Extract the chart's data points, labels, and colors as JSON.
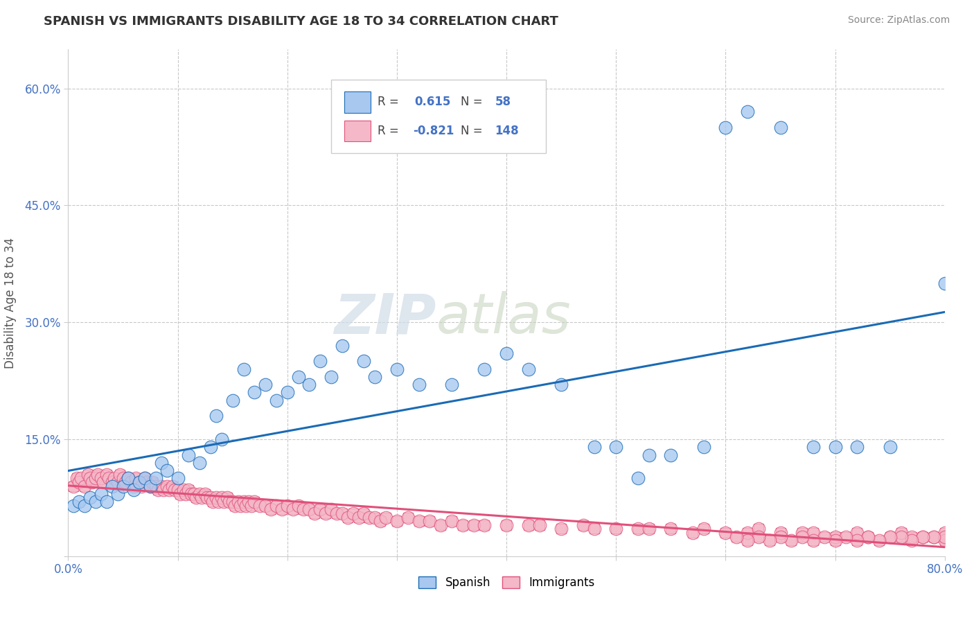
{
  "title": "SPANISH VS IMMIGRANTS DISABILITY AGE 18 TO 34 CORRELATION CHART",
  "source": "Source: ZipAtlas.com",
  "ylabel": "Disability Age 18 to 34",
  "xlim": [
    0.0,
    0.8
  ],
  "ylim": [
    0.0,
    0.65
  ],
  "r_spanish": 0.615,
  "n_spanish": 58,
  "r_immigrants": -0.821,
  "n_immigrants": 148,
  "spanish_color": "#a8c8f0",
  "immigrants_color": "#f4b8c8",
  "line_spanish_color": "#1a6bb5",
  "line_immigrants_color": "#e0507a",
  "watermark_zip": "ZIP",
  "watermark_atlas": "atlas",
  "background_color": "#ffffff",
  "grid_color": "#c8c8c8",
  "spanish_x": [
    0.005,
    0.01,
    0.015,
    0.02,
    0.025,
    0.03,
    0.035,
    0.04,
    0.045,
    0.05,
    0.055,
    0.06,
    0.065,
    0.07,
    0.075,
    0.08,
    0.085,
    0.09,
    0.1,
    0.11,
    0.12,
    0.13,
    0.135,
    0.14,
    0.15,
    0.16,
    0.17,
    0.18,
    0.19,
    0.2,
    0.21,
    0.22,
    0.23,
    0.24,
    0.25,
    0.27,
    0.28,
    0.3,
    0.32,
    0.35,
    0.38,
    0.4,
    0.42,
    0.45,
    0.48,
    0.5,
    0.52,
    0.53,
    0.55,
    0.58,
    0.6,
    0.62,
    0.65,
    0.68,
    0.7,
    0.72,
    0.75,
    0.8
  ],
  "spanish_y": [
    0.065,
    0.07,
    0.065,
    0.075,
    0.07,
    0.08,
    0.07,
    0.09,
    0.08,
    0.09,
    0.1,
    0.085,
    0.095,
    0.1,
    0.09,
    0.1,
    0.12,
    0.11,
    0.1,
    0.13,
    0.12,
    0.14,
    0.18,
    0.15,
    0.2,
    0.24,
    0.21,
    0.22,
    0.2,
    0.21,
    0.23,
    0.22,
    0.25,
    0.23,
    0.27,
    0.25,
    0.23,
    0.24,
    0.22,
    0.22,
    0.24,
    0.26,
    0.24,
    0.22,
    0.14,
    0.14,
    0.1,
    0.13,
    0.13,
    0.14,
    0.55,
    0.57,
    0.55,
    0.14,
    0.14,
    0.14,
    0.14,
    0.35
  ],
  "immigrants_x": [
    0.005,
    0.008,
    0.01,
    0.012,
    0.015,
    0.018,
    0.02,
    0.022,
    0.025,
    0.027,
    0.03,
    0.032,
    0.035,
    0.037,
    0.04,
    0.042,
    0.045,
    0.047,
    0.05,
    0.052,
    0.055,
    0.057,
    0.06,
    0.062,
    0.065,
    0.067,
    0.07,
    0.072,
    0.075,
    0.077,
    0.08,
    0.082,
    0.085,
    0.087,
    0.09,
    0.092,
    0.095,
    0.097,
    0.1,
    0.102,
    0.105,
    0.107,
    0.11,
    0.112,
    0.115,
    0.117,
    0.12,
    0.122,
    0.125,
    0.127,
    0.13,
    0.132,
    0.135,
    0.137,
    0.14,
    0.142,
    0.145,
    0.147,
    0.15,
    0.152,
    0.155,
    0.157,
    0.16,
    0.162,
    0.165,
    0.167,
    0.17,
    0.175,
    0.18,
    0.185,
    0.19,
    0.195,
    0.2,
    0.205,
    0.21,
    0.215,
    0.22,
    0.225,
    0.23,
    0.235,
    0.24,
    0.245,
    0.25,
    0.255,
    0.26,
    0.265,
    0.27,
    0.275,
    0.28,
    0.285,
    0.29,
    0.3,
    0.31,
    0.32,
    0.33,
    0.34,
    0.35,
    0.36,
    0.37,
    0.38,
    0.4,
    0.42,
    0.43,
    0.45,
    0.47,
    0.48,
    0.5,
    0.52,
    0.53,
    0.55,
    0.57,
    0.58,
    0.6,
    0.62,
    0.63,
    0.65,
    0.67,
    0.68,
    0.7,
    0.72,
    0.73,
    0.75,
    0.76,
    0.77,
    0.78,
    0.79,
    0.8,
    0.8,
    0.8,
    0.79,
    0.78,
    0.77,
    0.76,
    0.75,
    0.74,
    0.73,
    0.72,
    0.71,
    0.7,
    0.69,
    0.68,
    0.67,
    0.66,
    0.65,
    0.64,
    0.63,
    0.62,
    0.61
  ],
  "immigrants_y": [
    0.09,
    0.1,
    0.095,
    0.1,
    0.09,
    0.105,
    0.1,
    0.095,
    0.1,
    0.105,
    0.1,
    0.095,
    0.105,
    0.1,
    0.095,
    0.1,
    0.095,
    0.105,
    0.1,
    0.095,
    0.1,
    0.095,
    0.09,
    0.1,
    0.095,
    0.09,
    0.1,
    0.095,
    0.09,
    0.095,
    0.09,
    0.085,
    0.09,
    0.085,
    0.09,
    0.085,
    0.09,
    0.085,
    0.085,
    0.08,
    0.085,
    0.08,
    0.085,
    0.08,
    0.08,
    0.075,
    0.08,
    0.075,
    0.08,
    0.075,
    0.075,
    0.07,
    0.075,
    0.07,
    0.075,
    0.07,
    0.075,
    0.07,
    0.07,
    0.065,
    0.07,
    0.065,
    0.07,
    0.065,
    0.07,
    0.065,
    0.07,
    0.065,
    0.065,
    0.06,
    0.065,
    0.06,
    0.065,
    0.06,
    0.065,
    0.06,
    0.06,
    0.055,
    0.06,
    0.055,
    0.06,
    0.055,
    0.055,
    0.05,
    0.055,
    0.05,
    0.055,
    0.05,
    0.05,
    0.045,
    0.05,
    0.045,
    0.05,
    0.045,
    0.045,
    0.04,
    0.045,
    0.04,
    0.04,
    0.04,
    0.04,
    0.04,
    0.04,
    0.035,
    0.04,
    0.035,
    0.035,
    0.035,
    0.035,
    0.035,
    0.03,
    0.035,
    0.03,
    0.03,
    0.035,
    0.03,
    0.03,
    0.03,
    0.025,
    0.03,
    0.025,
    0.025,
    0.03,
    0.025,
    0.025,
    0.025,
    0.03,
    0.02,
    0.025,
    0.025,
    0.025,
    0.02,
    0.025,
    0.025,
    0.02,
    0.025,
    0.02,
    0.025,
    0.02,
    0.025,
    0.02,
    0.025,
    0.02,
    0.025,
    0.02,
    0.025,
    0.02,
    0.025
  ]
}
